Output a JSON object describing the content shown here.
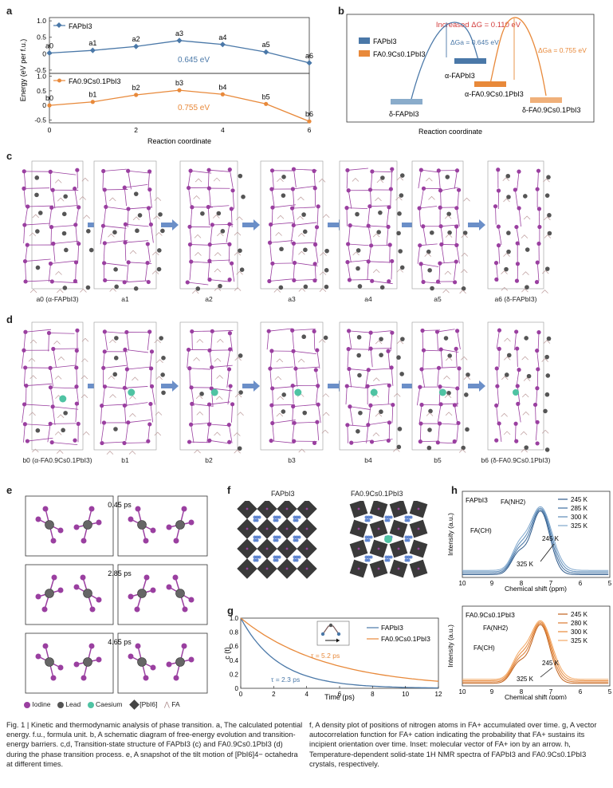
{
  "panels": {
    "a": {
      "label": "a",
      "ylabel": "Energy (eV per f.u.)",
      "xlabel": "Reaction coordinate",
      "top": {
        "legend": "FAPbI3",
        "color": "#4a78a8",
        "points": [
          "a0",
          "a1",
          "a2",
          "a3",
          "a4",
          "a5",
          "a6"
        ],
        "x": [
          0,
          1,
          2,
          3,
          4,
          5,
          6
        ],
        "y": [
          0.02,
          0.1,
          0.22,
          0.4,
          0.28,
          0.05,
          -0.28
        ],
        "annotation": "0.645 eV",
        "yticks": [
          "1.0",
          "0.5",
          "0",
          "-0.5"
        ]
      },
      "bottom": {
        "legend": "FA0.9Cs0.1PbI3",
        "color": "#e8893a",
        "points": [
          "b0",
          "b1",
          "b2",
          "b3",
          "b4",
          "b5",
          "b6"
        ],
        "x": [
          0,
          1,
          2,
          3,
          4,
          5,
          6
        ],
        "y": [
          0.0,
          0.12,
          0.36,
          0.52,
          0.38,
          0.05,
          -0.55
        ],
        "annotation": "0.755 eV",
        "yticks": [
          "1.0",
          "0.5",
          "0",
          "-0.5"
        ]
      },
      "xticks": [
        "0",
        "2",
        "4",
        "6"
      ]
    },
    "b": {
      "label": "b",
      "title": "Increased ΔG = 0.110 eV",
      "legend": [
        "FAPbI3",
        "FA0.9Cs0.1PbI3"
      ],
      "colors": [
        "#4a78a8",
        "#e8893a"
      ],
      "dg_blue": "ΔGa = 0.645 eV",
      "dg_orange": "ΔGa = 0.755 eV",
      "levels": [
        "α-FAPbI3",
        "δ-FAPbI3",
        "α-FA0.9Cs0.1PbI3",
        "δ-FA0.9Cs0.1PbI3"
      ],
      "xlabel": "Reaction coordinate"
    },
    "c": {
      "label": "c",
      "structures": [
        "a0 (α-FAPbI3)",
        "a1",
        "a2",
        "a3",
        "a4",
        "a5",
        "a6 (δ-FAPbI3)"
      ]
    },
    "d": {
      "label": "d",
      "structures": [
        "b0 (α-FA0.9Cs0.1PbI3)",
        "b1",
        "b2",
        "b3",
        "b4",
        "b5",
        "b6 (δ-FA0.9Cs0.1PbI3)"
      ]
    },
    "e": {
      "label": "e",
      "times": [
        "0.45 ps",
        "2.85 ps",
        "4.65 ps"
      ],
      "legend": [
        "Iodine",
        "Lead",
        "Caesium",
        "[PbI6]",
        "FA"
      ]
    },
    "f": {
      "label": "f",
      "titles": [
        "FAPbI3",
        "FA0.9Cs0.1PbI3"
      ]
    },
    "g": {
      "label": "g",
      "ylabel": "c (t)",
      "xlabel": "Time (ps)",
      "yticks": [
        "1.0",
        "0.8",
        "0.6",
        "0.4",
        "0.2",
        "0"
      ],
      "xticks": [
        "0",
        "2",
        "4",
        "6",
        "8",
        "10",
        "12"
      ],
      "legend": [
        "FAPbI3",
        "FA0.9Cs0.1PbI3"
      ],
      "tau_blue": "τ = 2.3 ps",
      "tau_orange": "τ = 5.2 ps"
    },
    "h": {
      "label": "h",
      "ylabel": "Intensity (a.u.)",
      "xlabel": "Chemical shift (ppm)",
      "xticks": [
        "10",
        "9",
        "8",
        "7",
        "6",
        "5"
      ],
      "top": {
        "sample": "FAPbI3",
        "temps": [
          "245 K",
          "285 K",
          "300 K",
          "325 K"
        ],
        "peak_nh": "FA(NH2)",
        "peak_ch": "FA(CH)",
        "arrow_top": "245 K",
        "arrow_bottom": "325 K"
      },
      "bottom": {
        "sample": "FA0.9Cs0.1PbI3",
        "temps": [
          "245 K",
          "280 K",
          "300 K",
          "325 K"
        ],
        "peak_nh": "FA(NH2)",
        "peak_ch": "FA(CH)",
        "arrow_top": "245 K",
        "arrow_bottom": "325 K"
      }
    }
  },
  "chart_data": [
    {
      "type": "line",
      "title": "",
      "xlabel": "Reaction coordinate",
      "ylabel": "Energy (eV per f.u.)",
      "x": [
        0,
        1,
        2,
        3,
        4,
        5,
        6
      ],
      "series": [
        {
          "name": "FAPbI3",
          "values": [
            0.02,
            0.1,
            0.22,
            0.4,
            0.28,
            0.05,
            -0.28
          ]
        },
        {
          "name": "FA0.9Cs0.1PbI3",
          "values": [
            0.0,
            0.12,
            0.36,
            0.52,
            0.38,
            0.05,
            -0.55
          ]
        }
      ]
    },
    {
      "type": "line",
      "title": "",
      "xlabel": "Time (ps)",
      "ylabel": "c (t)",
      "xlim": [
        0,
        12
      ],
      "ylim": [
        0,
        1
      ],
      "series": [
        {
          "name": "FAPbI3",
          "tau": 2.3
        },
        {
          "name": "FA0.9Cs0.1PbI3",
          "tau": 5.2
        }
      ]
    }
  ],
  "caption": {
    "left": "Fig. 1 | Kinetic and thermodynamic analysis of phase transition. a, The calculated potential energy. f.u., formula unit. b, A schematic diagram of free-energy evolution and transition-energy barriers. c,d, Transition-state structure of FAPbI3 (c) and FA0.9Cs0.1PbI3 (d) during the phase transition process. e, A snapshot of the tilt motion of [PbI6]4− octahedra at different times.",
    "right": "f, A density plot of positions of nitrogen atoms in FA+ accumulated over time. g, A vector autocorrelation function for FA+ cation indicating the probability that FA+ sustains its incipient orientation over time. Inset: molecular vector of FA+ ion by an arrow. h, Temperature-dependent solid-state 1H NMR spectra of FAPbI3 and FA0.9Cs0.1PbI3 crystals, respectively."
  }
}
